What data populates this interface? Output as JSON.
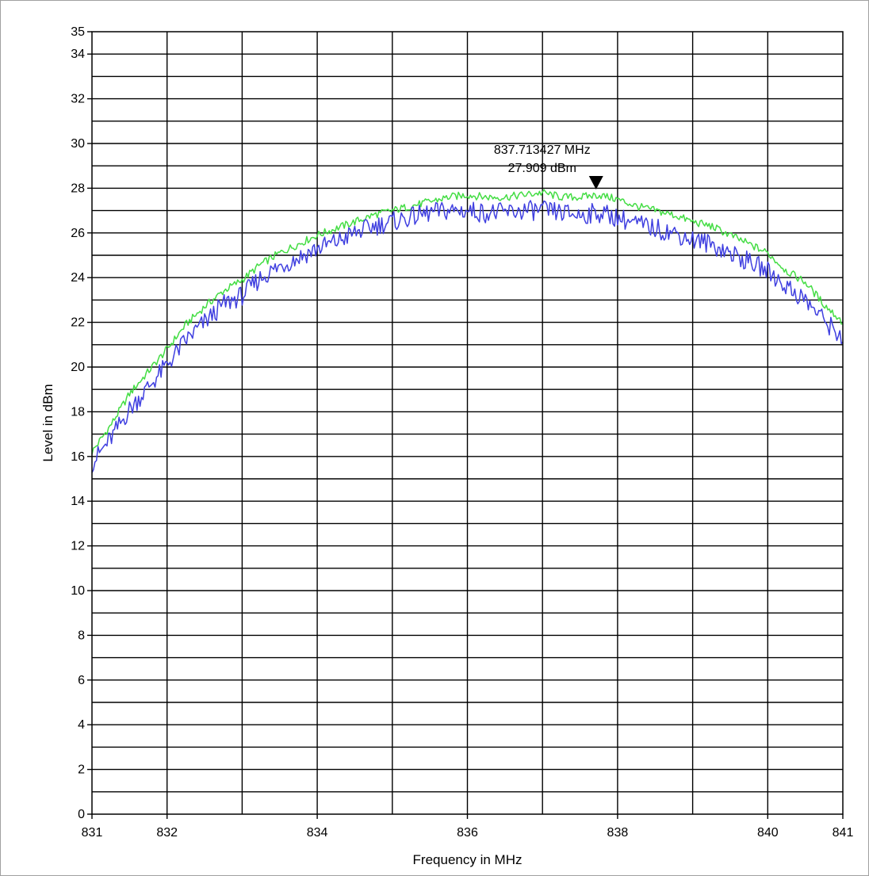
{
  "chart_data": {
    "type": "line",
    "title": "",
    "xlabel": "Frequency in MHz",
    "ylabel": "Level in dBm",
    "xlim": [
      831,
      841
    ],
    "ylim": [
      0,
      35
    ],
    "grid": true,
    "x_tick_labels": [
      "831",
      "832",
      "834",
      "836",
      "838",
      "840",
      "841"
    ],
    "x_ticks": [
      831,
      832,
      834,
      836,
      838,
      840,
      841
    ],
    "x_gridlines": [
      832,
      833,
      834,
      835,
      836,
      837,
      838,
      839,
      840
    ],
    "y_tick_labels": [
      "0",
      "2",
      "4",
      "6",
      "8",
      "10",
      "12",
      "14",
      "16",
      "18",
      "20",
      "22",
      "24",
      "26",
      "28",
      "30",
      "32",
      "34",
      "35"
    ],
    "y_ticks": [
      0,
      2,
      4,
      6,
      8,
      10,
      12,
      14,
      16,
      18,
      20,
      22,
      24,
      26,
      28,
      30,
      32,
      34,
      35
    ],
    "y_gridlines": [
      1,
      2,
      3,
      4,
      5,
      6,
      7,
      8,
      9,
      10,
      11,
      12,
      13,
      14,
      15,
      16,
      17,
      18,
      19,
      20,
      21,
      22,
      23,
      24,
      25,
      26,
      27,
      28,
      29,
      30,
      31,
      32,
      33,
      34
    ],
    "series": [
      {
        "color": "#44dd44",
        "x": [
          831.0,
          831.25,
          831.5,
          831.75,
          832.0,
          832.25,
          832.5,
          832.75,
          833.0,
          833.25,
          833.5,
          833.75,
          834.0,
          834.25,
          834.5,
          834.75,
          835.0,
          835.25,
          835.5,
          835.75,
          836.0,
          836.25,
          836.5,
          836.75,
          837.0,
          837.25,
          837.5,
          837.75,
          838.0,
          838.25,
          838.5,
          838.75,
          839.0,
          839.25,
          839.5,
          839.75,
          840.0,
          840.25,
          840.5,
          840.75,
          841.0
        ],
        "y": [
          16.2,
          17.4,
          18.8,
          19.8,
          20.8,
          21.9,
          22.7,
          23.4,
          23.9,
          24.6,
          25.1,
          25.5,
          25.9,
          26.2,
          26.5,
          26.8,
          27.0,
          27.2,
          27.4,
          27.6,
          27.7,
          27.6,
          27.6,
          27.7,
          27.8,
          27.6,
          27.6,
          27.7,
          27.5,
          27.2,
          27.0,
          26.8,
          26.5,
          26.3,
          25.9,
          25.5,
          25.1,
          24.3,
          23.8,
          22.8,
          22.0
        ]
      },
      {
        "color": "#4040e0",
        "x": [
          831.0,
          831.25,
          831.5,
          831.75,
          832.0,
          832.25,
          832.5,
          832.75,
          833.0,
          833.25,
          833.5,
          833.75,
          834.0,
          834.25,
          834.5,
          834.75,
          835.0,
          835.25,
          835.5,
          835.75,
          836.0,
          836.25,
          836.5,
          836.75,
          837.0,
          837.25,
          837.5,
          837.75,
          838.0,
          838.25,
          838.5,
          838.75,
          839.0,
          839.25,
          839.5,
          839.75,
          840.0,
          840.25,
          840.5,
          840.75,
          841.0
        ],
        "y": [
          15.7,
          16.8,
          18.1,
          19.1,
          20.1,
          21.2,
          22.0,
          22.8,
          23.2,
          24.0,
          24.5,
          24.9,
          25.3,
          25.6,
          26.0,
          26.3,
          26.5,
          26.7,
          26.9,
          27.0,
          27.0,
          26.9,
          26.9,
          27.0,
          27.0,
          26.9,
          26.8,
          26.9,
          26.7,
          26.4,
          26.2,
          26.0,
          25.7,
          25.5,
          25.1,
          24.7,
          24.3,
          23.6,
          23.0,
          22.1,
          21.3
        ]
      }
    ],
    "marker": {
      "x": 837.713427,
      "y": 27.909,
      "label_freq": "837.713427 MHz",
      "label_level": "27.909 dBm"
    }
  }
}
